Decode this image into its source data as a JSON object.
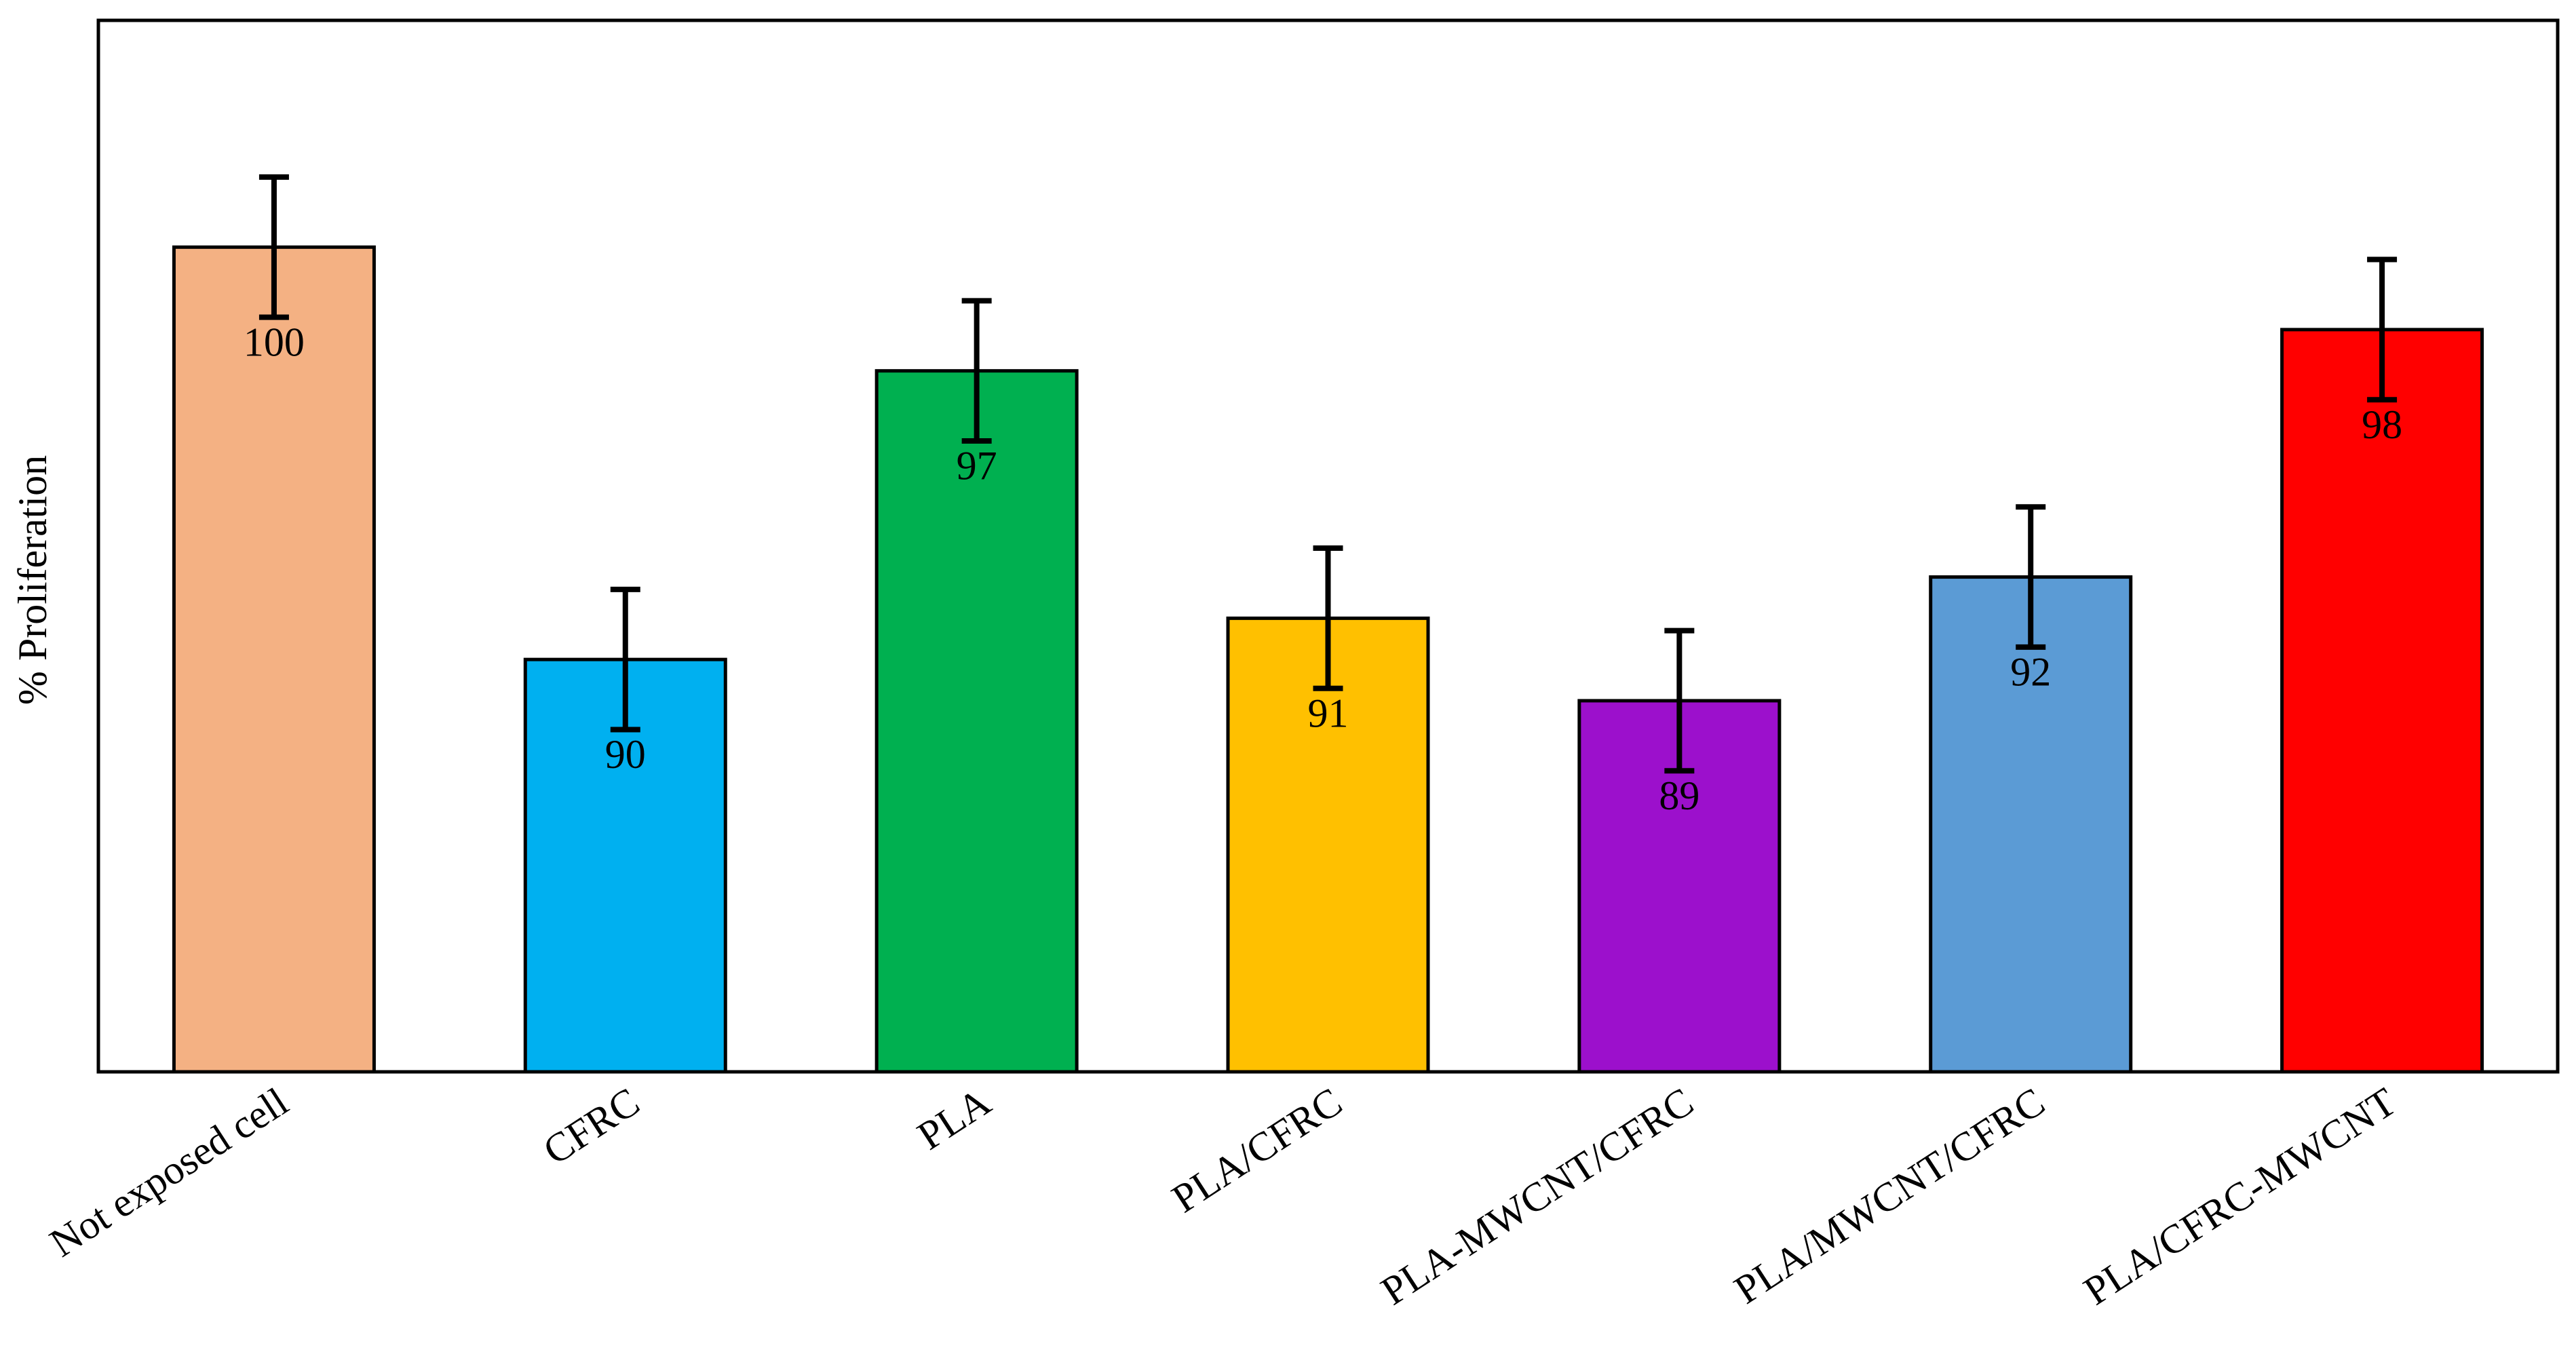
{
  "chart_data": {
    "type": "bar",
    "title": "",
    "xlabel": "",
    "ylabel": "% Proliferation",
    "categories": [
      "Not exposed cell",
      "CFRC",
      "PLA",
      "PLA/CFRC",
      "PLA-MWCNT/CFRC",
      "PLA/MWCNT/CFRC",
      "PLA/CFRC-MWCNT"
    ],
    "values": [
      100,
      90,
      97,
      91,
      89,
      92,
      98
    ],
    "value_labels": [
      "100",
      "90",
      "97",
      "91",
      "89",
      "92",
      "98"
    ],
    "error": [
      1.7,
      1.7,
      1.7,
      1.7,
      1.7,
      1.7,
      1.7
    ],
    "colors": [
      "#F4B183",
      "#00B0F0",
      "#00B050",
      "#FFC000",
      "#9C10CC",
      "#5B9BD5",
      "#FF0000"
    ],
    "ylim": [
      80,
      105.5
    ],
    "y_ticks_shown": false,
    "grid": false,
    "legend": "none"
  }
}
